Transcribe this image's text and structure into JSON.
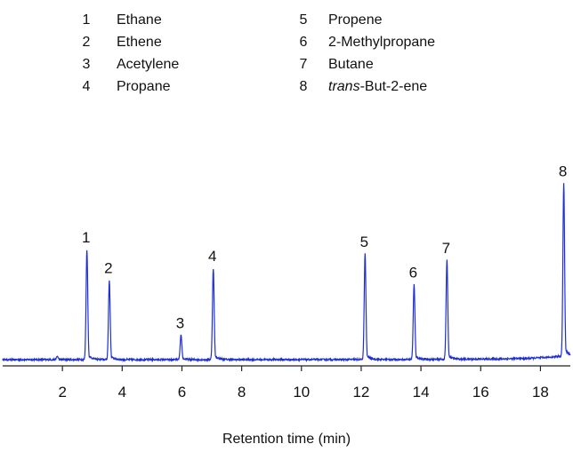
{
  "chart_data": {
    "type": "line",
    "xlabel": "Retention time (min)",
    "ylabel": "",
    "xlim": [
      0.0,
      19.0
    ],
    "x_ticks": [
      2,
      4,
      6,
      8,
      10,
      12,
      14,
      16,
      18
    ],
    "grid": false,
    "legend": {
      "placement": "top",
      "entries": [
        {
          "num": "1",
          "name": "Ethane"
        },
        {
          "num": "2",
          "name": "Ethene"
        },
        {
          "num": "3",
          "name": "Acetylene"
        },
        {
          "num": "4",
          "name": "Propane"
        },
        {
          "num": "5",
          "name": "Propene"
        },
        {
          "num": "6",
          "name": "2-Methylpropane"
        },
        {
          "num": "7",
          "name": "Butane"
        },
        {
          "num": "8",
          "italic_prefix": "trans",
          "name": "-But-2-ene"
        }
      ]
    },
    "series": [
      {
        "color": "#1f2fd6",
        "baseline": [
          [
            0.0,
            0.0
          ],
          [
            12.2,
            0.1
          ],
          [
            15.0,
            0.3
          ],
          [
            16.5,
            0.6
          ],
          [
            17.5,
            1.1
          ],
          [
            18.2,
            2.0
          ],
          [
            18.6,
            3.0
          ],
          [
            19.0,
            3.2
          ]
        ],
        "peaks": [
          {
            "label": "1",
            "rt": 2.82,
            "height": 100
          },
          {
            "label": "2",
            "rt": 3.57,
            "height": 72
          },
          {
            "label": "3",
            "rt": 5.97,
            "height": 22
          },
          {
            "label": "4",
            "rt": 7.05,
            "height": 83
          },
          {
            "label": "5",
            "rt": 12.13,
            "height": 96
          },
          {
            "label": "6",
            "rt": 13.77,
            "height": 68
          },
          {
            "label": "7",
            "rt": 14.87,
            "height": 90
          },
          {
            "label": "8",
            "rt": 18.78,
            "height": 157
          }
        ],
        "minor_peak": {
          "rt": 1.83,
          "height": 3
        }
      }
    ]
  }
}
